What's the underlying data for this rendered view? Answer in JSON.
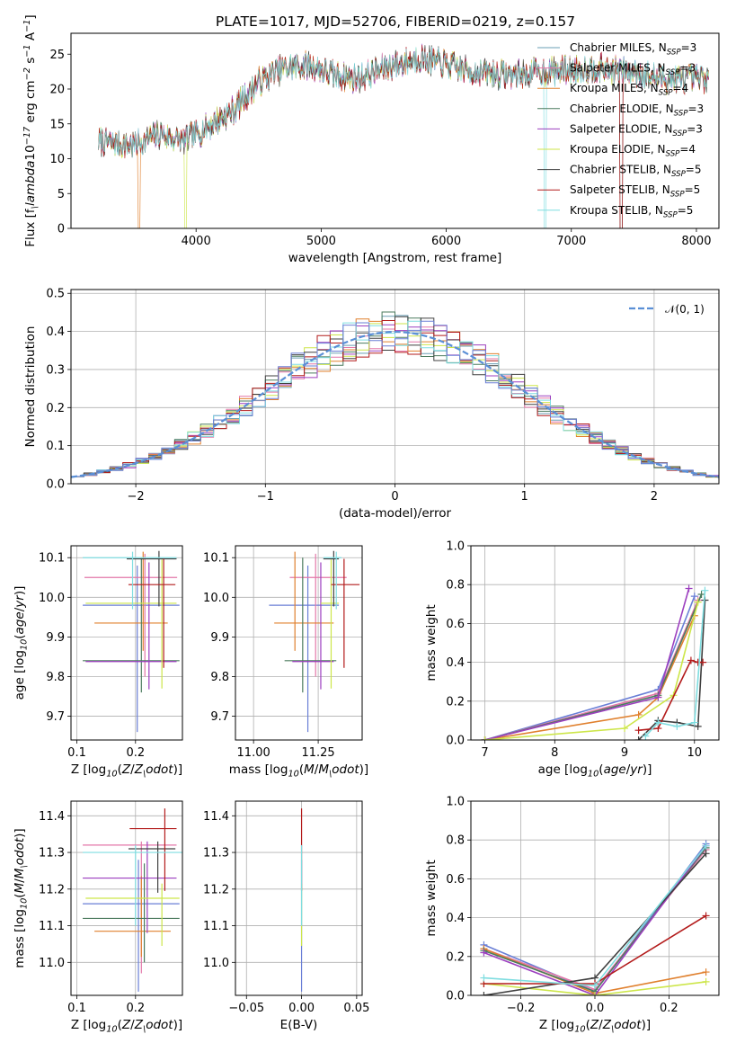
{
  "chart_data": [
    {
      "id": "spectrum",
      "type": "line",
      "title": "PLATE=1017, MJD=52706, FIBERID=0219, z=0.157",
      "xlabel": "wavelength [Angstrom, rest frame]",
      "ylabel": "Flux [f$_\\lambda$10$^{-17}$ erg cm$^{-2}$ s$^{-1}$ A$^{-1}$]",
      "xlim": [
        3000,
        8180
      ],
      "ylim": [
        0,
        28
      ],
      "xticks": [
        4000,
        5000,
        6000,
        7000,
        8000
      ],
      "yticks": [
        0,
        5,
        10,
        15,
        20,
        25
      ],
      "grid": false,
      "legend_position": "right",
      "data_range": [
        3220,
        8100
      ],
      "continuum_knots": [
        [
          3220,
          12.5
        ],
        [
          3500,
          12.0
        ],
        [
          3700,
          13.5
        ],
        [
          3900,
          12.5
        ],
        [
          4000,
          13.5
        ],
        [
          4300,
          17.0
        ],
        [
          4500,
          21.0
        ],
        [
          4700,
          23.0
        ],
        [
          4900,
          23.5
        ],
        [
          5100,
          22.0
        ],
        [
          5300,
          21.5
        ],
        [
          5500,
          23.0
        ],
        [
          5800,
          24.5
        ],
        [
          6000,
          23.5
        ],
        [
          6200,
          22.5
        ],
        [
          6500,
          22.0
        ],
        [
          6800,
          22.5
        ],
        [
          7200,
          23.0
        ],
        [
          7500,
          22.5
        ],
        [
          7700,
          21.5
        ],
        [
          8100,
          21.5
        ]
      ],
      "series": [
        {
          "name": "Chabrier MILES, N$_{SSP}$=3",
          "color": "#6a9fb5"
        },
        {
          "name": "Salpeter MILES, N$_{SSP}$=3",
          "color": "#e377a8"
        },
        {
          "name": "Kroupa MILES, N$_{SSP}$=4",
          "color": "#e0802e"
        },
        {
          "name": "Chabrier ELODIE, N$_{SSP}$=3",
          "color": "#4b7b5e"
        },
        {
          "name": "Salpeter ELODIE, N$_{SSP}$=3",
          "color": "#9c3fbf"
        },
        {
          "name": "Kroupa ELODIE, N$_{SSP}$=4",
          "color": "#cde64a"
        },
        {
          "name": "Chabrier STELIB, N$_{SSP}$=5",
          "color": "#404040"
        },
        {
          "name": "Salpeter STELIB, N$_{SSP}$=5",
          "color": "#b31b1b"
        },
        {
          "name": "Kroupa STELIB, N$_{SSP}$=5",
          "color": "#7fdde0"
        }
      ]
    },
    {
      "id": "residuals",
      "type": "line",
      "xlabel": "(data-model)/error",
      "ylabel": "Normed distribution",
      "xlim": [
        -2.5,
        2.5
      ],
      "ylim": [
        0,
        0.51
      ],
      "xticks": [
        -2,
        -1,
        0,
        1,
        2
      ],
      "yticks": [
        0.0,
        0.1,
        0.2,
        0.3,
        0.4,
        0.5
      ],
      "grid": true,
      "legend_position": "top-right",
      "bin_width": 0.1,
      "gaussian": {
        "name": "$\\mathcal{N}(0, 1)$",
        "color": "#5a8fd6",
        "mean": 0,
        "sigma": 1
      },
      "histogram_colors": [
        "#6a9fb5",
        "#e377a8",
        "#e0802e",
        "#4b7b5e",
        "#9c3fbf",
        "#cde64a",
        "#404040",
        "#b31b1b",
        "#7fdde0",
        "#6a7fd6"
      ]
    },
    {
      "id": "age-Z",
      "type": "scatter",
      "xlabel": "Z [log$_{10}$($Z/Z_\\odot$)]",
      "ylabel": "age  [log$_{10}$($age/yr$)]",
      "xlim": [
        0.09,
        0.28
      ],
      "ylim": [
        9.64,
        10.13
      ],
      "xticks": [
        0.1,
        0.2
      ],
      "yticks": [
        9.7,
        9.8,
        9.9,
        10.0,
        10.1
      ],
      "grid": true,
      "points": [
        {
          "x": 0.203,
          "y": 9.98,
          "xerr": [
            0.093,
            0.072
          ],
          "yerr": [
            0.32,
            0.1
          ],
          "color": "#6a7fd6"
        },
        {
          "x": 0.216,
          "y": 10.05,
          "xerr": [
            0.103,
            0.055
          ],
          "yerr": [
            0.25,
            0.06
          ],
          "color": "#e377a8"
        },
        {
          "x": 0.213,
          "y": 9.935,
          "xerr": [
            0.083,
            0.042
          ],
          "yerr": [
            0.07,
            0.18
          ],
          "color": "#e0802e"
        },
        {
          "x": 0.21,
          "y": 9.84,
          "xerr": [
            0.1,
            0.065
          ],
          "yerr": [
            0.08,
            0.26
          ],
          "color": "#4b7b5e"
        },
        {
          "x": 0.223,
          "y": 9.838,
          "xerr": [
            0.108,
            0.047
          ],
          "yerr": [
            0.07,
            0.25
          ],
          "color": "#9c3fbf"
        },
        {
          "x": 0.245,
          "y": 9.985,
          "xerr": [
            0.13,
            0.025
          ],
          "yerr": [
            0.215,
            0.11
          ],
          "color": "#cde64a"
        },
        {
          "x": 0.24,
          "y": 10.097,
          "xerr": [
            0.055,
            0.03
          ],
          "yerr": [
            0.12,
            0.02
          ],
          "color": "#404040"
        },
        {
          "x": 0.248,
          "y": 10.032,
          "xerr": [
            0.06,
            0.02
          ],
          "yerr": [
            0.21,
            0.065
          ],
          "color": "#b31b1b"
        },
        {
          "x": 0.195,
          "y": 10.1,
          "xerr": [
            0.085,
            0.075
          ],
          "yerr": [
            0.13,
            0.015
          ],
          "color": "#7fdde0"
        }
      ]
    },
    {
      "id": "age-mass",
      "type": "scatter",
      "xlabel": "mass [log$_{10}$($M/M_\\odot$)]",
      "ylabel": "",
      "xlim": [
        10.93,
        11.42
      ],
      "ylim": [
        9.64,
        10.13
      ],
      "xticks": [
        11.0,
        11.25
      ],
      "xtick_labels": [
        "11.00",
        "11.25"
      ],
      "yticks": [
        9.7,
        9.8,
        9.9,
        10.0,
        10.1
      ],
      "grid": true,
      "points": [
        {
          "x": 11.21,
          "y": 9.98,
          "xerr": [
            0.15,
            0.12
          ],
          "yerr": [
            0.32,
            0.1
          ],
          "color": "#6a7fd6"
        },
        {
          "x": 11.24,
          "y": 10.05,
          "xerr": [
            0.1,
            0.12
          ],
          "yerr": [
            0.25,
            0.06
          ],
          "color": "#e377a8"
        },
        {
          "x": 11.16,
          "y": 9.935,
          "xerr": [
            0.08,
            0.15
          ],
          "yerr": [
            0.07,
            0.18
          ],
          "color": "#e0802e"
        },
        {
          "x": 11.19,
          "y": 9.84,
          "xerr": [
            0.07,
            0.13
          ],
          "yerr": [
            0.08,
            0.26
          ],
          "color": "#4b7b5e"
        },
        {
          "x": 11.26,
          "y": 9.838,
          "xerr": [
            0.11,
            0.05
          ],
          "yerr": [
            0.07,
            0.25
          ],
          "color": "#9c3fbf"
        },
        {
          "x": 11.3,
          "y": 9.985,
          "xerr": [
            0.04,
            0.03
          ],
          "yerr": [
            0.215,
            0.11
          ],
          "color": "#cde64a"
        },
        {
          "x": 11.31,
          "y": 10.097,
          "xerr": [
            0.04,
            0.02
          ],
          "yerr": [
            0.12,
            0.02
          ],
          "color": "#404040"
        },
        {
          "x": 11.35,
          "y": 10.032,
          "xerr": [
            0.05,
            0.06
          ],
          "yerr": [
            0.21,
            0.065
          ],
          "color": "#b31b1b"
        },
        {
          "x": 11.32,
          "y": 10.1,
          "xerr": [
            0.05,
            0.02
          ],
          "yerr": [
            0.13,
            0.015
          ],
          "color": "#7fdde0"
        }
      ]
    },
    {
      "id": "weight-age",
      "type": "line",
      "xlabel": "age  [log$_{10}$($age/yr$)]",
      "ylabel": "mass weight",
      "xlim": [
        6.8,
        10.35
      ],
      "ylim": [
        0,
        1.0
      ],
      "xticks": [
        7,
        8,
        9,
        10
      ],
      "yticks": [
        0.0,
        0.2,
        0.4,
        0.6,
        0.8,
        1.0
      ],
      "grid": true,
      "series": [
        {
          "color": "#6a7fd6",
          "x": [
            7.0,
            9.48,
            10.0
          ],
          "y": [
            0.0,
            0.26,
            0.74
          ]
        },
        {
          "color": "#e377a8",
          "x": [
            7.0,
            9.48,
            10.05
          ],
          "y": [
            0.0,
            0.24,
            0.72
          ]
        },
        {
          "color": "#e0802e",
          "x": [
            7.0,
            9.2,
            9.48,
            10.0
          ],
          "y": [
            0.0,
            0.13,
            0.22,
            0.64
          ]
        },
        {
          "color": "#4b7b5e",
          "x": [
            7.0,
            9.48,
            10.1
          ],
          "y": [
            0.0,
            0.23,
            0.75
          ]
        },
        {
          "color": "#9c3fbf",
          "x": [
            7.0,
            9.48,
            9.92
          ],
          "y": [
            0.0,
            0.22,
            0.78
          ]
        },
        {
          "color": "#cde64a",
          "x": [
            7.0,
            9.0,
            9.7,
            10.05
          ],
          "y": [
            0.0,
            0.06,
            0.23,
            0.71
          ]
        },
        {
          "color": "#404040",
          "x": [
            9.2,
            9.48,
            9.75,
            10.05,
            10.15
          ],
          "y": [
            0.0,
            0.1,
            0.09,
            0.07,
            0.72
          ]
        },
        {
          "color": "#b31b1b",
          "x": [
            9.2,
            9.48,
            9.95,
            10.05,
            10.12
          ],
          "y": [
            0.05,
            0.06,
            0.41,
            0.4,
            0.4
          ]
        },
        {
          "color": "#7fdde0",
          "x": [
            9.3,
            9.48,
            9.75,
            10.0,
            10.15
          ],
          "y": [
            0.02,
            0.09,
            0.07,
            0.09,
            0.77
          ]
        }
      ]
    },
    {
      "id": "mass-Z",
      "type": "scatter",
      "xlabel": "Z [log$_{10}$($Z/Z_\\odot$)]",
      "ylabel": "mass [log$_{10}$($M/M_\\odot$)]",
      "xlim": [
        0.09,
        0.28
      ],
      "ylim": [
        10.91,
        11.44
      ],
      "xticks": [
        0.1,
        0.2
      ],
      "yticks": [
        11.0,
        11.1,
        11.2,
        11.3,
        11.4
      ],
      "grid": true,
      "points": [
        {
          "x": 0.205,
          "y": 11.16,
          "xerr": [
            0.095,
            0.07
          ],
          "yerr": [
            0.24,
            0.12
          ],
          "color": "#6a7fd6"
        },
        {
          "x": 0.21,
          "y": 11.32,
          "xerr": [
            0.1,
            0.06
          ],
          "yerr": [
            0.35,
            0.01
          ],
          "color": "#e377a8"
        },
        {
          "x": 0.21,
          "y": 11.085,
          "xerr": [
            0.08,
            0.05
          ],
          "yerr": [
            0.07,
            0.15
          ],
          "color": "#e0802e"
        },
        {
          "x": 0.215,
          "y": 11.12,
          "xerr": [
            0.105,
            0.06
          ],
          "yerr": [
            0.12,
            0.15
          ],
          "color": "#4b7b5e"
        },
        {
          "x": 0.22,
          "y": 11.23,
          "xerr": [
            0.11,
            0.05
          ],
          "yerr": [
            0.15,
            0.1
          ],
          "color": "#9c3fbf"
        },
        {
          "x": 0.245,
          "y": 11.175,
          "xerr": [
            0.13,
            0.03
          ],
          "yerr": [
            0.13,
            0.04
          ],
          "color": "#cde64a"
        },
        {
          "x": 0.238,
          "y": 11.31,
          "xerr": [
            0.05,
            0.03
          ],
          "yerr": [
            0.12,
            0.02
          ],
          "color": "#404040"
        },
        {
          "x": 0.25,
          "y": 11.365,
          "xerr": [
            0.06,
            0.02
          ],
          "yerr": [
            0.17,
            0.055
          ],
          "color": "#b31b1b"
        },
        {
          "x": 0.2,
          "y": 11.3,
          "xerr": [
            0.09,
            0.08
          ],
          "yerr": [
            0.2,
            0.02
          ],
          "color": "#7fdde0"
        }
      ]
    },
    {
      "id": "mass-EBV",
      "type": "scatter",
      "xlabel": "E(B-V)",
      "ylabel": "",
      "xlim": [
        -0.06,
        0.055
      ],
      "ylim": [
        10.91,
        11.44
      ],
      "xticks": [
        -0.05,
        0.0,
        0.05
      ],
      "xtick_labels": [
        "−0.05",
        "0.00",
        "0.05"
      ],
      "yticks": [
        11.0,
        11.1,
        11.2,
        11.3,
        11.4
      ],
      "grid": true,
      "points": [
        {
          "x": 0.0,
          "y": 11.16,
          "yerr": [
            0.24,
            0.12
          ],
          "color": "#6a7fd6"
        },
        {
          "x": 0.0,
          "y": 11.175,
          "yerr": [
            0.13,
            0.04
          ],
          "color": "#cde64a"
        },
        {
          "x": 0.0,
          "y": 11.365,
          "yerr": [
            0.17,
            0.055
          ],
          "color": "#b31b1b"
        },
        {
          "x": 0.0,
          "y": 11.3,
          "yerr": [
            0.2,
            0.02
          ],
          "color": "#7fdde0"
        }
      ]
    },
    {
      "id": "weight-Z",
      "type": "line",
      "xlabel": "Z [log$_{10}$($Z/Z_\\odot$)]",
      "ylabel": "mass weight",
      "xlim": [
        -0.335,
        0.335
      ],
      "ylim": [
        0,
        1.0
      ],
      "xticks": [
        -0.2,
        0.0,
        0.2
      ],
      "xtick_labels": [
        "−0.2",
        "0.0",
        "0.2"
      ],
      "yticks": [
        0.0,
        0.2,
        0.4,
        0.6,
        0.8,
        1.0
      ],
      "grid": true,
      "series": [
        {
          "color": "#6a7fd6",
          "x": [
            -0.3,
            0.0,
            0.3
          ],
          "y": [
            0.26,
            0.02,
            0.78
          ]
        },
        {
          "color": "#e377a8",
          "x": [
            -0.3,
            0.0,
            0.3
          ],
          "y": [
            0.24,
            0.03,
            0.75
          ]
        },
        {
          "color": "#e0802e",
          "x": [
            -0.3,
            0.0,
            0.3
          ],
          "y": [
            0.24,
            0.01,
            0.12
          ]
        },
        {
          "color": "#4b7b5e",
          "x": [
            -0.3,
            0.0,
            0.3
          ],
          "y": [
            0.23,
            0.02,
            0.76
          ]
        },
        {
          "color": "#9c3fbf",
          "x": [
            -0.3,
            0.0,
            0.3
          ],
          "y": [
            0.22,
            0.0,
            0.77
          ]
        },
        {
          "color": "#cde64a",
          "x": [
            -0.3,
            0.0,
            0.3
          ],
          "y": [
            0.06,
            0.0,
            0.07
          ]
        },
        {
          "color": "#404040",
          "x": [
            -0.3,
            0.0,
            0.3
          ],
          "y": [
            0.0,
            0.09,
            0.73
          ]
        },
        {
          "color": "#b31b1b",
          "x": [
            -0.3,
            0.0,
            0.3
          ],
          "y": [
            0.06,
            0.06,
            0.41
          ]
        },
        {
          "color": "#7fdde0",
          "x": [
            -0.3,
            0.0,
            0.3
          ],
          "y": [
            0.09,
            0.05,
            0.77
          ]
        }
      ]
    }
  ]
}
